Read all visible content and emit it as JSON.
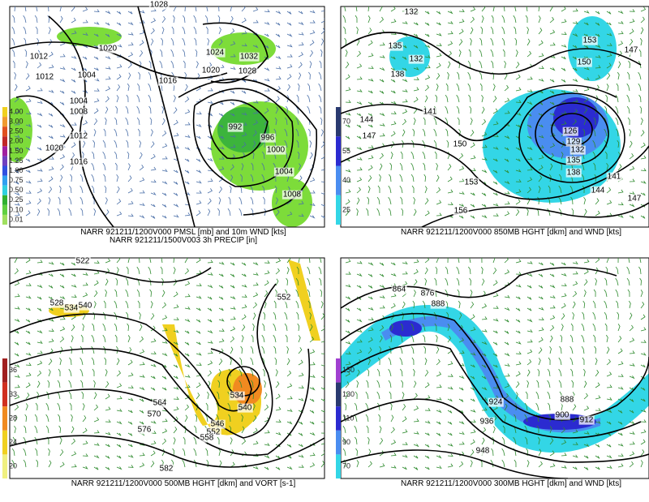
{
  "panels": [
    {
      "captions": [
        "NARR 921211/1200V000 PMSL [mb] and 10m WND [kts]",
        "NARR 921211/1500V003 3h PRECIP [in]"
      ],
      "colorbar_labels": [
        "4.00",
        "3.00",
        "2.50",
        "2.00",
        "1.50",
        "1.25",
        "1.00",
        "0.75",
        "0.50",
        "0.25",
        "0.10",
        "0.01"
      ],
      "contour_labels": [
        "1028",
        "1012",
        "1020",
        "1024",
        "1032",
        "1012",
        "1004",
        "1020",
        "1028",
        "1016",
        "1004",
        "1008",
        "1012",
        "1020",
        "1016",
        "992",
        "996",
        "1000",
        "1004",
        "1008"
      ]
    },
    {
      "captions": [
        "NARR 921211/1200V000 850MB HGHT [dkm] and WND [kts]"
      ],
      "colorbar_labels": [
        "70",
        "55",
        "40",
        "25"
      ],
      "contour_labels": [
        "132",
        "135",
        "132",
        "138",
        "141",
        "144",
        "147",
        "150",
        "153",
        "156",
        "153",
        "147",
        "150",
        "126",
        "129",
        "132",
        "135",
        "138",
        "141",
        "144",
        "147"
      ]
    },
    {
      "captions": [
        "NARR 921211/1200V000 500MB HGHT [dkm] and VORT [s-1]"
      ],
      "colorbar_labels": [
        "36",
        "33",
        "28",
        "24",
        "20"
      ],
      "contour_labels": [
        "522",
        "528",
        "534",
        "540",
        "552",
        "534",
        "540",
        "546",
        "552",
        "558",
        "564",
        "570",
        "576",
        "582"
      ]
    },
    {
      "captions": [
        "NARR 921211/1200V000 300MB HGHT [dkm] and WND [kts]"
      ],
      "colorbar_labels": [
        "150",
        "130",
        "110",
        "90",
        "70"
      ],
      "contour_labels": [
        "864",
        "876",
        "888",
        "924",
        "888",
        "900",
        "912",
        "936",
        "948"
      ]
    }
  ]
}
